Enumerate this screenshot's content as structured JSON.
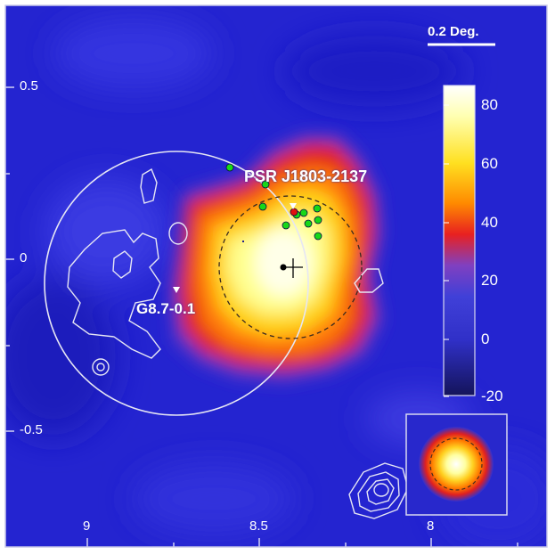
{
  "colors": {
    "background": "#2525d2",
    "frame": "#d8d8f0",
    "contour": "#e6e6f4",
    "source_green": "#18d818",
    "source_red": "#e01010",
    "centroid": "#000000",
    "text": "#ffffff"
  },
  "axes": {
    "x_ticks": [
      "9",
      "8.5",
      "8"
    ],
    "y_ticks": [
      "0.5",
      "0",
      "-0.5"
    ]
  },
  "scale_bar": {
    "label": "0.2 Deg."
  },
  "colorbar": {
    "ticks": [
      "80",
      "60",
      "40",
      "20",
      "0",
      "-20"
    ],
    "range": [
      -20,
      85
    ],
    "colormap": [
      "#1a1a70",
      "#3535d5",
      "#8040c0",
      "#e82020",
      "#ff8a00",
      "#ffe020",
      "#ffffc0",
      "#ffffff"
    ]
  },
  "annotations": {
    "pulsar": "PSR J1803-2137",
    "snr": "G8.7-0.1"
  },
  "sources": {
    "green_count": 11,
    "red_count": 1
  },
  "psf_inset": {
    "icon": "psf-circle-icon"
  }
}
